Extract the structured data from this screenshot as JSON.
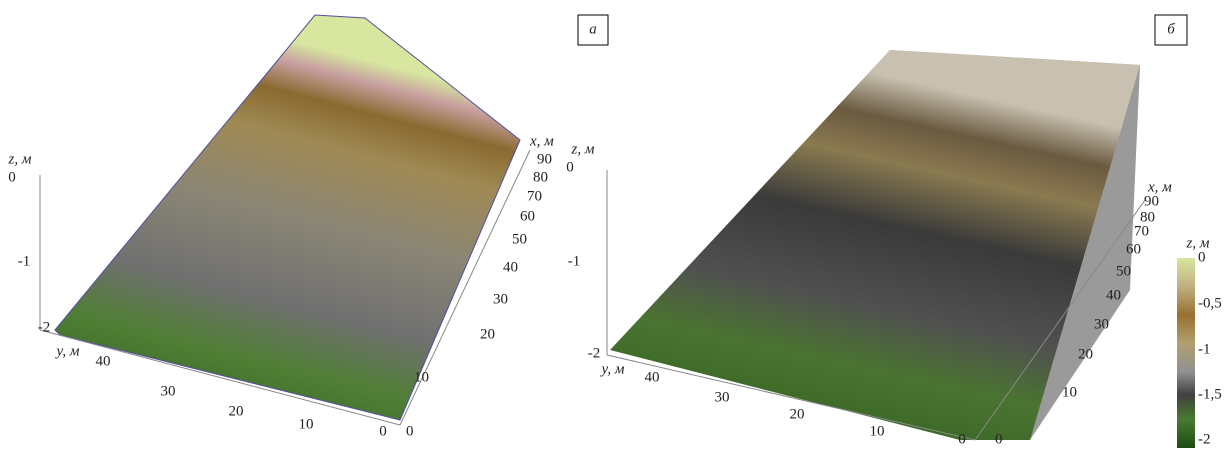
{
  "panels": [
    {
      "label": "а",
      "z_axis": {
        "title": "z, м",
        "ticks": [
          "0",
          "-1",
          "-2"
        ]
      },
      "x_axis": {
        "title": "x, м",
        "ticks": [
          "90",
          "80",
          "70",
          "60",
          "50",
          "40",
          "30",
          "20",
          "10",
          "0"
        ]
      },
      "y_axis": {
        "title": "y, м",
        "ticks": [
          "40",
          "30",
          "20",
          "10",
          "0"
        ]
      }
    },
    {
      "label": "б",
      "z_axis": {
        "title": "z, м",
        "ticks": [
          "0",
          "-1",
          "-2"
        ]
      },
      "x_axis": {
        "title": "x, м",
        "ticks": [
          "90",
          "80",
          "70",
          "60",
          "50",
          "40",
          "30",
          "20",
          "10",
          "0"
        ]
      },
      "y_axis": {
        "title": "y, м",
        "ticks": [
          "40",
          "30",
          "20",
          "10",
          "0"
        ]
      }
    }
  ],
  "colorbar": {
    "title": "z, м",
    "ticks": [
      "0",
      "-0,5",
      "-1",
      "-1,5",
      "-2"
    ]
  }
}
